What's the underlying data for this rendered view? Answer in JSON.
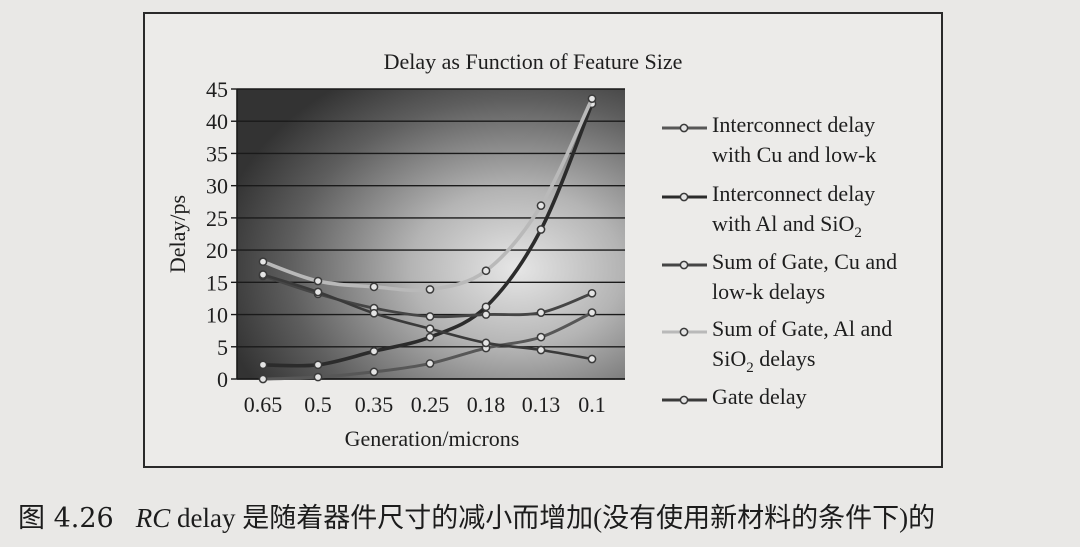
{
  "chart_data": {
    "type": "line",
    "title": "Delay as Function of Feature Size",
    "xlabel": "Generation/microns",
    "ylabel": "Delay/ps",
    "categories": [
      "0.65",
      "0.5",
      "0.35",
      "0.25",
      "0.18",
      "0.13",
      "0.1"
    ],
    "ylim": [
      0,
      45
    ],
    "yticks": [
      "0",
      "5",
      "10",
      "15",
      "20",
      "25",
      "30",
      "35",
      "40",
      "45"
    ],
    "grid": true,
    "legend_position": "right",
    "series": [
      {
        "name": "Interconnect delay with Cu and low-k",
        "name_lines": [
          "Interconnect delay",
          "with Cu and low-k"
        ],
        "values": [
          0,
          0.3,
          1.1,
          2.4,
          4.8,
          6.5,
          10.3
        ]
      },
      {
        "name": "Interconnect delay with Al and SiO2",
        "name_lines": [
          "Interconnect delay",
          "with Al and SiO",
          "2"
        ],
        "values": [
          2.2,
          2.2,
          4.3,
          6.5,
          11.2,
          23.2,
          42.7
        ]
      },
      {
        "name": "Sum of Gate, Cu and low-k delays",
        "name_lines": [
          "Sum of Gate, Cu and",
          "low-k delays"
        ],
        "values": [
          16,
          13.2,
          11,
          9.7,
          10,
          10.3,
          13.3
        ]
      },
      {
        "name": "Sum of Gate, Al and SiO2 delays",
        "name_lines": [
          "Sum of Gate, Al and",
          "SiO",
          "2",
          " delays"
        ],
        "values": [
          18.2,
          15.2,
          14.3,
          13.9,
          16.8,
          26.9,
          43.5
        ]
      },
      {
        "name": "Gate delay",
        "name_lines": [
          "Gate delay"
        ],
        "values": [
          16.2,
          13.5,
          10.2,
          7.8,
          5.6,
          4.5,
          3.1
        ]
      }
    ]
  },
  "caption": {
    "figure_number": "图 4.26",
    "rc": "RC",
    "text": " delay 是随着器件尺寸的减小而增加(没有使用新材料的条件下)的"
  }
}
